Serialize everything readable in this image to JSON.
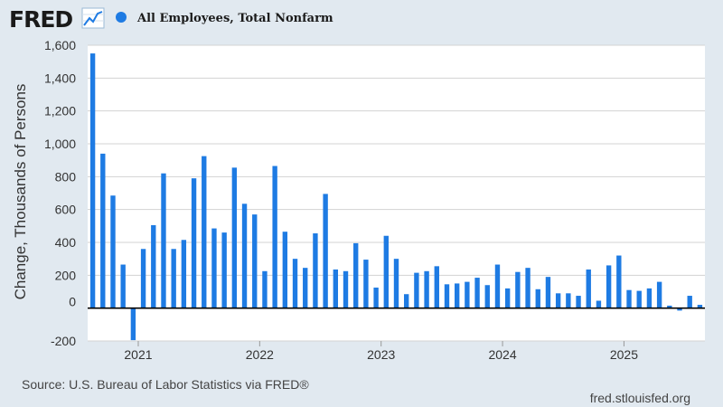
{
  "logo": {
    "text": "FRED",
    "icon": "fred-chart-icon"
  },
  "legend": {
    "label": "All Employees, Total Nonfarm",
    "color": "#1e7be3"
  },
  "footer": {
    "source": "Source: U.S. Bureau of Labor Statistics via FRED®",
    "site": "fred.stlouisfed.org"
  },
  "chart_data": {
    "type": "bar",
    "title": "",
    "ylabel": "Change, Thousands of Persons",
    "xlabel": "",
    "ylim": [
      -200,
      1600
    ],
    "grid": true,
    "legend_position": "top-left",
    "bar_color": "#1e7be3",
    "y_ticks": [
      -200,
      0,
      200,
      400,
      600,
      800,
      1000,
      1200,
      1400,
      1600
    ],
    "y_tick_labels": [
      "-200",
      "0",
      "200",
      "400",
      "600",
      "800",
      "1,000",
      "1,200",
      "1,400",
      "1,600"
    ],
    "x_ticks": [
      "2021-01",
      "2022-01",
      "2023-01",
      "2024-01",
      "2025-01"
    ],
    "x_tick_labels": [
      "2021",
      "2022",
      "2023",
      "2024",
      "2025"
    ],
    "categories": [
      "2020-08",
      "2020-09",
      "2020-10",
      "2020-11",
      "2020-12",
      "2021-01",
      "2021-02",
      "2021-03",
      "2021-04",
      "2021-05",
      "2021-06",
      "2021-07",
      "2021-08",
      "2021-09",
      "2021-10",
      "2021-11",
      "2021-12",
      "2022-01",
      "2022-02",
      "2022-03",
      "2022-04",
      "2022-05",
      "2022-06",
      "2022-07",
      "2022-08",
      "2022-09",
      "2022-10",
      "2022-11",
      "2022-12",
      "2023-01",
      "2023-02",
      "2023-03",
      "2023-04",
      "2023-05",
      "2023-06",
      "2023-07",
      "2023-08",
      "2023-09",
      "2023-10",
      "2023-11",
      "2023-12",
      "2024-01",
      "2024-02",
      "2024-03",
      "2024-04",
      "2024-05",
      "2024-06",
      "2024-07",
      "2024-08",
      "2024-09",
      "2024-10",
      "2024-11",
      "2024-12",
      "2025-01",
      "2025-02",
      "2025-03",
      "2025-04",
      "2025-05",
      "2025-06",
      "2025-07",
      "2025-08"
    ],
    "values": [
      1550,
      940,
      685,
      265,
      -195,
      360,
      505,
      820,
      360,
      415,
      790,
      925,
      485,
      460,
      855,
      635,
      570,
      225,
      865,
      465,
      300,
      245,
      455,
      695,
      235,
      225,
      395,
      295,
      125,
      440,
      300,
      85,
      215,
      225,
      255,
      145,
      150,
      160,
      185,
      140,
      265,
      120,
      220,
      245,
      115,
      190,
      90,
      90,
      75,
      235,
      45,
      260,
      320,
      110,
      105,
      120,
      160,
      15,
      -15,
      75,
      20
    ]
  }
}
